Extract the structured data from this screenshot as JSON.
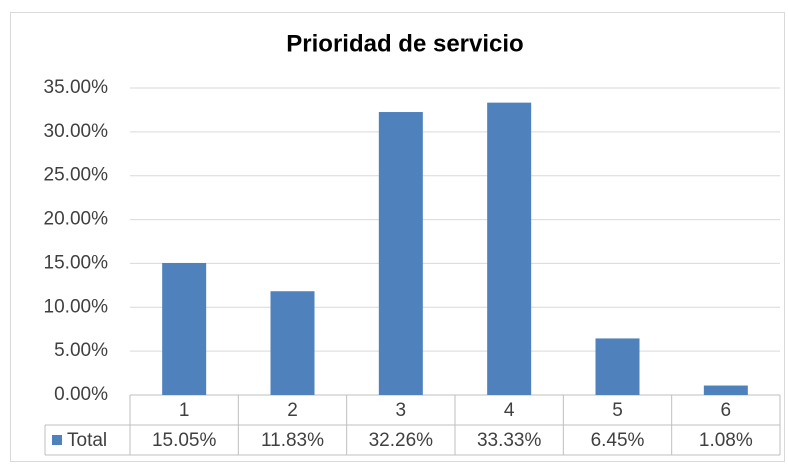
{
  "chart_data": {
    "type": "bar",
    "title": "Prioridad de servicio",
    "categories": [
      "1",
      "2",
      "3",
      "4",
      "5",
      "6"
    ],
    "series": [
      {
        "name": "Total",
        "color": "#4f81bd",
        "values": [
          15.05,
          11.83,
          32.26,
          33.33,
          6.45,
          1.08
        ],
        "value_labels": [
          "15.05%",
          "11.83%",
          "32.26%",
          "33.33%",
          "6.45%",
          "1.08%"
        ]
      }
    ],
    "ylim": [
      0,
      35
    ],
    "yticks": [
      {
        "value": 0,
        "label": "0.00%"
      },
      {
        "value": 5,
        "label": "5.00%"
      },
      {
        "value": 10,
        "label": "10.00%"
      },
      {
        "value": 15,
        "label": "15.00%"
      },
      {
        "value": 20,
        "label": "20.00%"
      },
      {
        "value": 25,
        "label": "25.00%"
      },
      {
        "value": 30,
        "label": "30.00%"
      },
      {
        "value": 35,
        "label": "35.00%"
      }
    ],
    "grid": true
  }
}
